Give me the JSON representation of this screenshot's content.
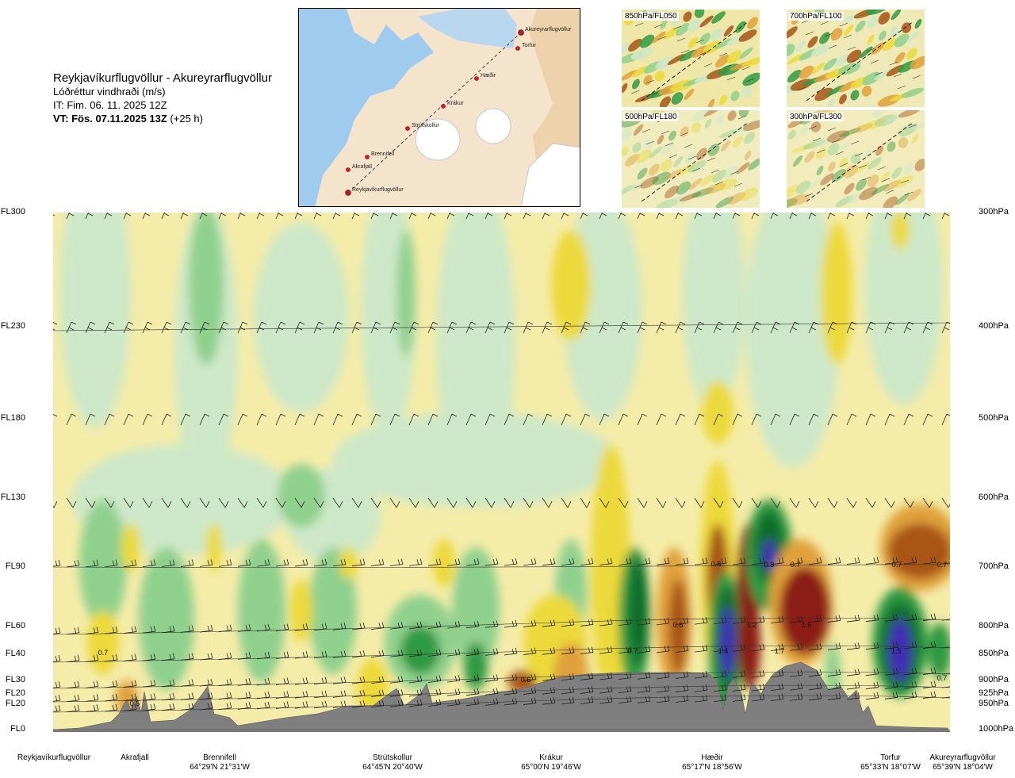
{
  "header": {
    "route": "Reykjavíkurflugvöllur - Akureyrarflugvöllur",
    "parameter": "Lóðréttur vindhraði (m/s)",
    "issue_time": "IT: Fim. 06. 11. 2025 12Z",
    "valid_prefix": "VT: Fös. 07.11.2025 13Z",
    "valid_lead": " (+25 h)"
  },
  "map": {
    "waypoints": [
      "Reykjavíkurflugvöllur",
      "Akrafjall",
      "Brennifell",
      "Strútskollur",
      "Krákur",
      "Hæðir",
      "Torfur",
      "Akureyrarflugvöllur"
    ]
  },
  "mini_maps": [
    {
      "label": "850hPa/FL050"
    },
    {
      "label": "700hPa/FL100"
    },
    {
      "label": "500hPa/FL180"
    },
    {
      "label": "300hPa/FL300"
    }
  ],
  "colors": {
    "strong_down": "#3f2fb5",
    "down3": "#0e6e2a",
    "down2": "#2f9a43",
    "down1": "#8fd08d",
    "weak_down": "#cde8c8",
    "neutral": "#fffbe0",
    "weak_up": "#f5eca8",
    "up1": "#ecd93a",
    "up2": "#e0a03a",
    "up3": "#a85515",
    "strong_up": "#8b1a12",
    "terrain": "#7f7f7f"
  },
  "chart_data": {
    "type": "heatmap",
    "title": "Lóðréttur vindhraði (m/s)",
    "y_levels": [
      {
        "fl": "FL300",
        "hpa": "300hPa"
      },
      {
        "fl": "FL230",
        "hpa": "400hPa"
      },
      {
        "fl": "FL180",
        "hpa": "500hPa"
      },
      {
        "fl": "FL130",
        "hpa": "600hPa"
      },
      {
        "fl": "FL90",
        "hpa": "700hPa"
      },
      {
        "fl": "FL60",
        "hpa": "800hPa"
      },
      {
        "fl": "FL40",
        "hpa": "850hPa"
      },
      {
        "fl": "FL30",
        "hpa": "900hPa"
      },
      {
        "fl": "FL20",
        "hpa": "925hPa"
      },
      {
        "fl": "FL20",
        "hpa": "950hPa"
      },
      {
        "fl": "FL0",
        "hpa": "1000hPa"
      }
    ],
    "stations": [
      {
        "name": "Reykjavíkurflugvöllur",
        "coord": ""
      },
      {
        "name": "Akrafjall",
        "coord": ""
      },
      {
        "name": "Brennifell",
        "coord": "64°29'N 21°31'W"
      },
      {
        "name": "Strútskollur",
        "coord": "64°45'N 20°40'W"
      },
      {
        "name": "Krákur",
        "coord": "65°00'N 19°46'W"
      },
      {
        "name": "Hæðir",
        "coord": "65°17'N 18°56'W"
      },
      {
        "name": "Torfur",
        "coord": "65°33'N 18°07'W"
      },
      {
        "name": "Akureyrarflugvöllur",
        "coord": "65°39'N 18°04'W"
      }
    ],
    "max_labels": [
      "0.5",
      "0.6",
      "0.6",
      "0.8",
      "0.8",
      "0.7",
      "1.2",
      "1.4",
      "1.7",
      "1.6",
      "0.7",
      "0.7",
      "1.5",
      "0.7"
    ],
    "min_labels": [
      "0.7",
      "0.7"
    ]
  }
}
